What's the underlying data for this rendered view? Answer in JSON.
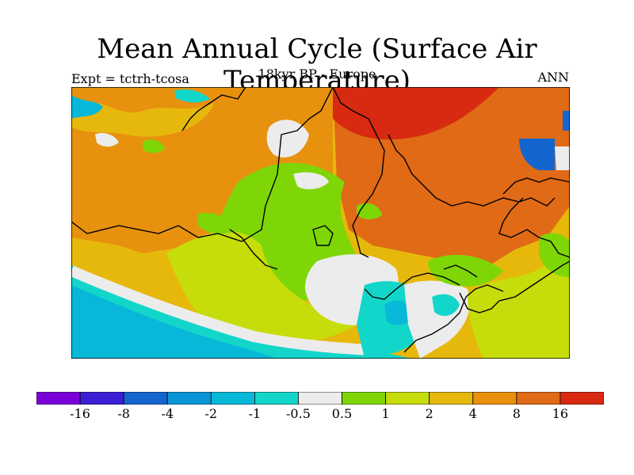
{
  "figure": {
    "title": "Mean Annual Cycle (Surface Air Temperature)",
    "subtitle": "18kyr BP - Europe",
    "left_label": "Expt = tctrh-tcosa",
    "right_label": "ANN"
  },
  "legend": {
    "colors": [
      "#7a00d8",
      "#3a1fd4",
      "#1565cf",
      "#0a95d8",
      "#08b8d8",
      "#12d6c9",
      "#ececec",
      "#7ed606",
      "#c7dc0b",
      "#e6b80c",
      "#e8910e",
      "#e06a16",
      "#d82a10"
    ],
    "labels": [
      "-16",
      "-8",
      "-4",
      "-2",
      "-1",
      "-0.5",
      "0.5",
      "1",
      "2",
      "4",
      "8",
      "16"
    ]
  }
}
